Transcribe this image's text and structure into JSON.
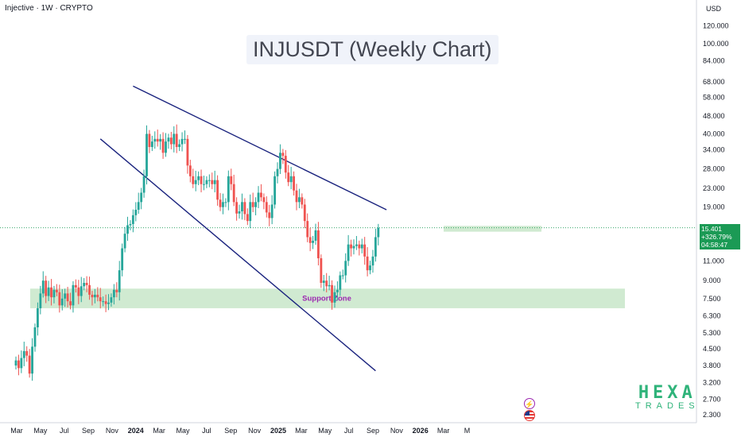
{
  "header": {
    "symbol_line": "Injective · 1W · CRYPTO",
    "currency": "USD"
  },
  "title": "INJUSDT (Weekly Chart)",
  "annotation": {
    "support_label": "Support Zone"
  },
  "price_box": {
    "price": "15.401",
    "change": "+326.79%",
    "countdown": "04:58:47"
  },
  "branding": {
    "line1": "HEXA",
    "line2": "TRADES"
  },
  "icons": [
    "lightning-icon",
    "us-flag-icon"
  ],
  "colors": {
    "up": "#26a69a",
    "down": "#ef5350",
    "trendline": "#1a237e",
    "zone": "#c8e6c9",
    "zone_label": "#9c27b0",
    "brand": "#2fb37a",
    "price_tag": "#1b9a55"
  },
  "chart_data": {
    "type": "candlestick",
    "scale": "log",
    "y_ticks": [
      "120.000",
      "100.000",
      "84.000",
      "68.000",
      "58.000",
      "48.000",
      "40.000",
      "34.000",
      "28.000",
      "23.000",
      "19.000",
      "15.401",
      "11.000",
      "9.000",
      "7.500",
      "6.300",
      "5.300",
      "4.500",
      "3.800",
      "3.200",
      "2.700",
      "2.300"
    ],
    "x_ticks": [
      "Mar",
      "May",
      "Jul",
      "Sep",
      "Nov",
      "2024",
      "Mar",
      "May",
      "Jul",
      "Sep",
      "Nov",
      "2025",
      "Mar",
      "May",
      "Jul",
      "Sep",
      "Nov",
      "2026",
      "Mar",
      "M"
    ],
    "bold_x_ticks": [
      "2024",
      "2025",
      "2026"
    ],
    "last_price": 15.401,
    "change_pct": 326.79,
    "support_zone": {
      "low": 6.8,
      "high": 8.3,
      "label": "Support Zone"
    },
    "resistance_zone": {
      "low": 14.8,
      "high": 15.7
    },
    "upper_trendline": {
      "start": [
        "2023-12-25",
        65.0
      ],
      "end": [
        "2025-10-06",
        18.5
      ]
    },
    "lower_trendline": {
      "start": [
        "2023-10-02",
        38.0
      ],
      "end": [
        "2025-09-08",
        3.6
      ]
    },
    "start_date": "2023-02-27",
    "closes": [
      4.0,
      3.7,
      4.1,
      4.4,
      4.2,
      3.5,
      4.6,
      5.6,
      6.8,
      7.9,
      9.0,
      7.7,
      8.4,
      7.6,
      8.2,
      8.0,
      7.0,
      7.5,
      7.9,
      7.3,
      7.0,
      8.6,
      8.4,
      7.7,
      8.5,
      8.8,
      8.6,
      7.8,
      7.6,
      7.8,
      7.6,
      7.3,
      7.3,
      7.1,
      7.2,
      7.6,
      8.2,
      8.0,
      10.0,
      12.5,
      14.5,
      15.8,
      16.0,
      17.5,
      18.5,
      20.0,
      22.0,
      26.0,
      40.0,
      35.0,
      37.0,
      38.0,
      37.0,
      38.0,
      33.0,
      37.0,
      38.5,
      36.0,
      40.0,
      35.0,
      36.0,
      38.0,
      38.0,
      29.0,
      26.0,
      24.0,
      25.0,
      26.0,
      24.0,
      24.0,
      25.0,
      25.0,
      24.0,
      25.0,
      20.5,
      19.0,
      20.0,
      20.0,
      26.0,
      24.0,
      20.0,
      17.8,
      18.2,
      20.0,
      17.7,
      16.5,
      20.0,
      19.0,
      20.0,
      22.0,
      21.0,
      20.0,
      18.0,
      17.0,
      19.5,
      26.0,
      28.0,
      33.0,
      32.0,
      27.0,
      24.5,
      26.0,
      22.5,
      20.0,
      21.0,
      19.5,
      16.5,
      14.0,
      13.2,
      13.5,
      15.0,
      11.3,
      8.8,
      9.0,
      8.5,
      8.6,
      7.2,
      8.0,
      8.2,
      9.5,
      9.5,
      11.0,
      13.0,
      12.5,
      12.8,
      13.0,
      12.5,
      13.0,
      11.5,
      10.0,
      10.5,
      11.5,
      14.0,
      15.401
    ]
  }
}
